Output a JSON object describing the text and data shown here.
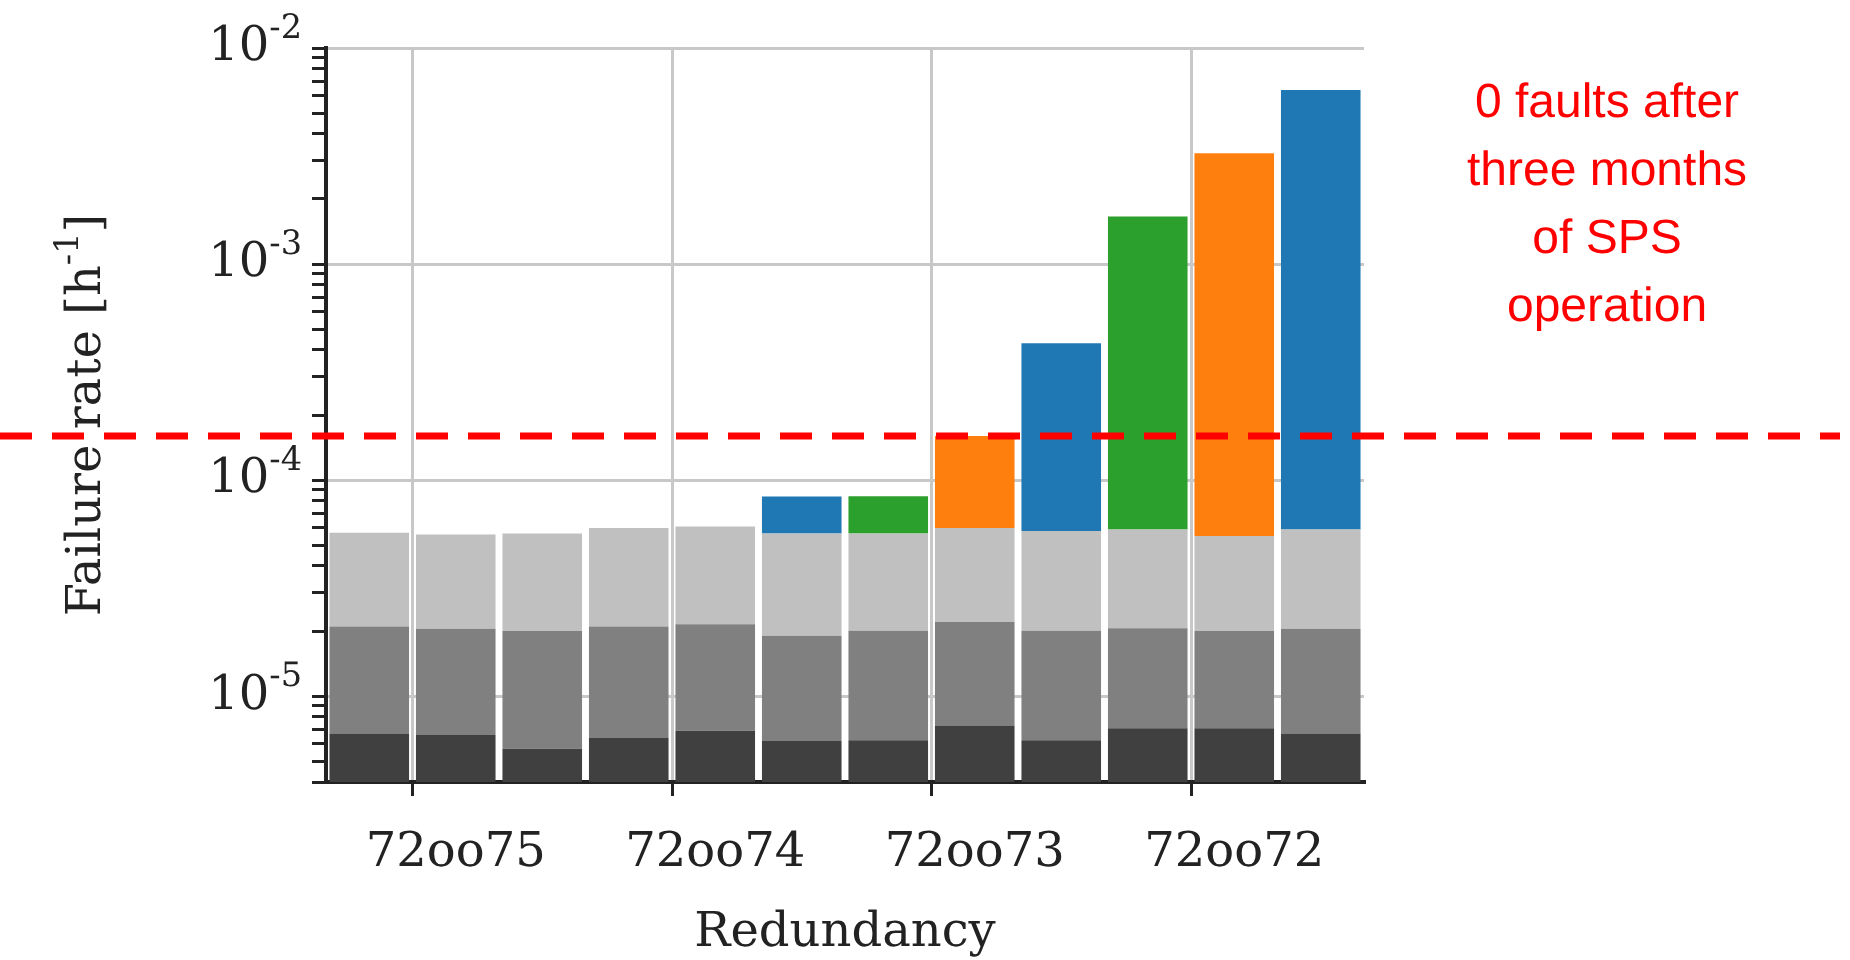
{
  "chart_data": {
    "type": "bar",
    "stacked": true,
    "xlabel": "Redundancy",
    "ylabel": "Failure rate [h$^{-1}$]",
    "log": "y",
    "grid": true,
    "legend": false,
    "categories": [
      null,
      "72oo75",
      null,
      null,
      "72oo74",
      null,
      null,
      "72oo73",
      null,
      null,
      "72oo72",
      null
    ],
    "series": [
      {
        "color": "#404040",
        "values": [
          6.7e-06,
          6.6e-06,
          5.7e-06,
          6.4e-06,
          6.9e-06,
          6.2e-06,
          6.25e-06,
          7.3e-06,
          6.25e-06,
          7.1e-06,
          7.1e-06,
          6.7e-06
        ]
      },
      {
        "color": "#808080",
        "values": [
          1.43e-05,
          1.39e-05,
          1.43e-05,
          1.46e-05,
          1.46e-05,
          1.28e-05,
          1.38e-05,
          1.47e-05,
          1.38e-05,
          1.35e-05,
          1.29e-05,
          1.38e-05
        ]
      },
      {
        "color": "#c0c0c0",
        "values": [
          3.6e-05,
          3.55e-05,
          3.65e-05,
          3.9e-05,
          3.95e-05,
          3.75e-05,
          3.65e-05,
          3.8e-05,
          3.8e-05,
          3.84e-05,
          3.5e-05,
          3.85e-05
        ]
      },
      {
        "colors": [
          "#2ca02c",
          "#ff7f0e",
          "#1f77b4",
          "#2ca02c",
          "#ff7f0e",
          "#1f77b4",
          "#2ca02c",
          "#ff7f0e",
          "#1f77b4",
          "#2ca02c",
          "#ff7f0e",
          "#1f77b4"
        ],
        "values": [
          null,
          null,
          null,
          null,
          null,
          2.75e-05,
          2.75e-05,
          0.0001,
          0.000372,
          0.0016,
          0.0032,
          0.00634
        ]
      }
    ],
    "ylim": [
      4e-06,
      0.01
    ],
    "yticks": [
      {
        "value": 4e-06,
        "label": null
      },
      {
        "value": 5e-06,
        "label": null
      },
      {
        "value": 6e-06,
        "label": null
      },
      {
        "value": 7e-06,
        "label": null
      },
      {
        "value": 8e-06,
        "label": null
      },
      {
        "value": 9e-06,
        "label": null
      },
      {
        "value": 1e-05,
        "label": "10$^{-5}$"
      },
      {
        "value": 2e-05,
        "label": null
      },
      {
        "value": 3e-05,
        "label": null
      },
      {
        "value": 4e-05,
        "label": null
      },
      {
        "value": 5e-05,
        "label": null
      },
      {
        "value": 6e-05,
        "label": null
      },
      {
        "value": 7e-05,
        "label": null
      },
      {
        "value": 8e-05,
        "label": null
      },
      {
        "value": 9e-05,
        "label": null
      },
      {
        "value": 0.0001,
        "label": "10$^{-4}$"
      },
      {
        "value": 0.0002,
        "label": null
      },
      {
        "value": 0.0003,
        "label": null
      },
      {
        "value": 0.0004,
        "label": null
      },
      {
        "value": 0.0005,
        "label": null
      },
      {
        "value": 0.0006,
        "label": null
      },
      {
        "value": 0.0007,
        "label": null
      },
      {
        "value": 0.0008,
        "label": null
      },
      {
        "value": 0.0009,
        "label": null
      },
      {
        "value": 0.001,
        "label": "10$^{-3}$"
      },
      {
        "value": 0.002,
        "label": null
      },
      {
        "value": 0.003,
        "label": null
      },
      {
        "value": 0.004,
        "label": null
      },
      {
        "value": 0.005,
        "label": null
      },
      {
        "value": 0.006,
        "label": null
      },
      {
        "value": 0.007,
        "label": null
      },
      {
        "value": 0.008,
        "label": null
      },
      {
        "value": 0.009,
        "label": null
      },
      {
        "value": 0.01,
        "label": "10$^{-2}$"
      }
    ],
    "ref_lines": [
      {
        "axis": "y",
        "value": 0.00016,
        "label": "0 faults after three months of SPS operation",
        "color": "#ff0000",
        "line_style": "dashed"
      }
    ]
  }
}
